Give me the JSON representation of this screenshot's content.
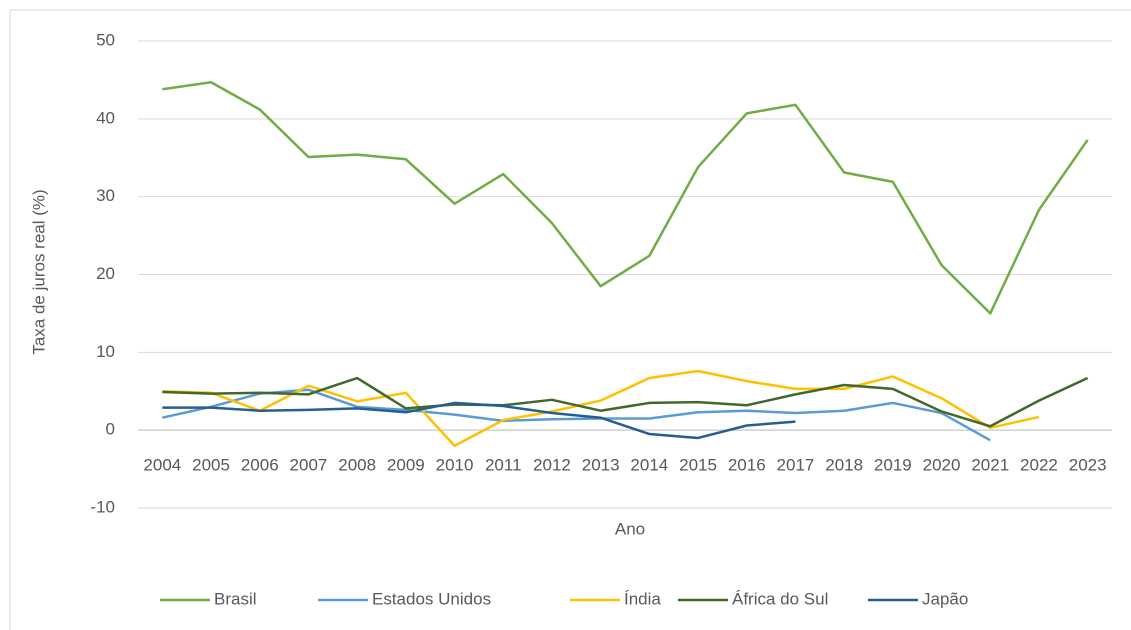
{
  "chart_data": {
    "type": "line",
    "categories": [
      "2004",
      "2005",
      "2006",
      "2007",
      "2008",
      "2009",
      "2010",
      "2011",
      "2012",
      "2013",
      "2014",
      "2015",
      "2016",
      "2017",
      "2018",
      "2019",
      "2020",
      "2021",
      "2022",
      "2023"
    ],
    "series": [
      {
        "name": "Brasil",
        "color": "#70ad47",
        "values": [
          43.8,
          44.7,
          41.2,
          35.1,
          35.4,
          34.8,
          29.1,
          32.9,
          26.6,
          18.5,
          22.4,
          33.8,
          40.7,
          41.8,
          33.1,
          31.9,
          21.2,
          15.0,
          28.3,
          37.3
        ]
      },
      {
        "name": "Estados Unidos",
        "color": "#5b9bd5",
        "values": [
          1.6,
          3.0,
          4.7,
          5.2,
          3.0,
          2.6,
          2.0,
          1.2,
          1.4,
          1.5,
          1.5,
          2.3,
          2.5,
          2.2,
          2.5,
          3.5,
          2.2,
          -1.3,
          null,
          null
        ]
      },
      {
        "name": "Índia",
        "color": "#ffc000",
        "values": [
          5.0,
          4.8,
          2.5,
          5.7,
          3.7,
          4.8,
          -2.0,
          1.3,
          2.4,
          3.8,
          6.7,
          7.6,
          6.3,
          5.3,
          5.3,
          6.9,
          4.1,
          0.3,
          1.7,
          null
        ]
      },
      {
        "name": "África do Sul",
        "color": "#43682b",
        "values": [
          4.9,
          4.7,
          4.8,
          4.6,
          6.7,
          2.8,
          3.3,
          3.2,
          3.9,
          2.5,
          3.5,
          3.6,
          3.2,
          4.6,
          5.8,
          5.3,
          2.4,
          0.5,
          3.8,
          6.7
        ]
      },
      {
        "name": "Japão",
        "color": "#255e91",
        "values": [
          2.9,
          2.9,
          2.5,
          2.6,
          2.8,
          2.3,
          3.5,
          3.1,
          2.2,
          1.6,
          -0.5,
          -1.0,
          0.6,
          1.1,
          null,
          null,
          null,
          null,
          null,
          null
        ]
      }
    ],
    "ylim": [
      -10,
      50
    ],
    "yticks": [
      -10,
      0,
      10,
      20,
      30,
      40,
      50
    ],
    "grid": true,
    "xlabel": "Ano",
    "ylabel": "Taxa de juros real (%)",
    "legend": "bottom"
  }
}
